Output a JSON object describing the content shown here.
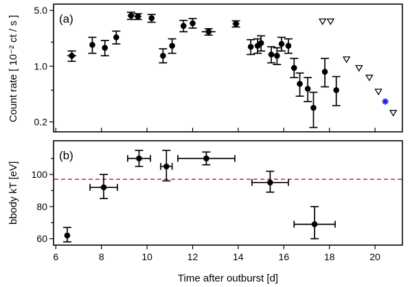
{
  "chart_data": [
    {
      "type": "scatter",
      "panel_label": "(a)",
      "ylabel": "Count rate [ 10⁻² ct / s ]",
      "xlim": [
        5.9,
        21.2
      ],
      "ylim_log": [
        0.15,
        6.0
      ],
      "y_scale": "log",
      "x_ticks": [
        6,
        8,
        10,
        12,
        14,
        16,
        18,
        20
      ],
      "y_ticks": [
        0.2,
        1.0,
        5.0
      ],
      "y_tick_labels": [
        "0.2",
        "1.0",
        "5.0"
      ],
      "series": [
        {
          "name": "detections",
          "points": [
            {
              "x": 6.7,
              "y": 1.35,
              "ylo": 1.15,
              "yhi": 1.55,
              "xerr": 0.2
            },
            {
              "x": 7.6,
              "y": 1.85,
              "ylo": 1.45,
              "yhi": 2.3,
              "xerr": 0
            },
            {
              "x": 8.15,
              "y": 1.7,
              "ylo": 1.35,
              "yhi": 2.1,
              "xerr": 0
            },
            {
              "x": 8.65,
              "y": 2.3,
              "ylo": 1.9,
              "yhi": 2.75,
              "xerr": 0
            },
            {
              "x": 9.3,
              "y": 4.3,
              "ylo": 3.85,
              "yhi": 4.75,
              "xerr": 0.15
            },
            {
              "x": 9.6,
              "y": 4.2,
              "ylo": 3.85,
              "yhi": 4.55,
              "xerr": 0.15
            },
            {
              "x": 10.2,
              "y": 4.0,
              "ylo": 3.55,
              "yhi": 4.45,
              "xerr": 0
            },
            {
              "x": 10.7,
              "y": 1.35,
              "ylo": 1.1,
              "yhi": 1.65,
              "xerr": 0
            },
            {
              "x": 11.1,
              "y": 1.8,
              "ylo": 1.45,
              "yhi": 2.2,
              "xerr": 0
            },
            {
              "x": 11.6,
              "y": 3.2,
              "ylo": 2.7,
              "yhi": 3.75,
              "xerr": 0
            },
            {
              "x": 12.0,
              "y": 3.45,
              "ylo": 3.0,
              "yhi": 3.95,
              "xerr": 0
            },
            {
              "x": 12.7,
              "y": 2.7,
              "ylo": 2.45,
              "yhi": 2.95,
              "xerr": 0.3
            },
            {
              "x": 13.9,
              "y": 3.4,
              "ylo": 3.1,
              "yhi": 3.7,
              "xerr": 0.15
            },
            {
              "x": 14.55,
              "y": 1.75,
              "ylo": 1.4,
              "yhi": 2.15,
              "xerr": 0
            },
            {
              "x": 14.85,
              "y": 1.8,
              "ylo": 1.45,
              "yhi": 2.2,
              "xerr": 0
            },
            {
              "x": 15.0,
              "y": 1.95,
              "ylo": 1.55,
              "yhi": 2.4,
              "xerr": 0
            },
            {
              "x": 15.45,
              "y": 1.4,
              "ylo": 1.1,
              "yhi": 1.75,
              "xerr": 0
            },
            {
              "x": 15.7,
              "y": 1.35,
              "ylo": 1.05,
              "yhi": 1.7,
              "xerr": 0
            },
            {
              "x": 15.9,
              "y": 1.9,
              "ylo": 1.55,
              "yhi": 2.3,
              "xerr": 0
            },
            {
              "x": 16.2,
              "y": 1.8,
              "ylo": 1.45,
              "yhi": 2.2,
              "xerr": 0
            },
            {
              "x": 16.45,
              "y": 0.95,
              "ylo": 0.72,
              "yhi": 1.25,
              "xerr": 0
            },
            {
              "x": 16.7,
              "y": 0.6,
              "ylo": 0.42,
              "yhi": 0.82,
              "xerr": 0
            },
            {
              "x": 17.05,
              "y": 0.52,
              "ylo": 0.36,
              "yhi": 0.72,
              "xerr": 0
            },
            {
              "x": 17.3,
              "y": 0.3,
              "ylo": 0.17,
              "yhi": 0.47,
              "xerr": 0
            },
            {
              "x": 17.8,
              "y": 0.85,
              "ylo": 0.55,
              "yhi": 1.25,
              "xerr": 0
            },
            {
              "x": 18.3,
              "y": 0.5,
              "ylo": 0.32,
              "yhi": 0.74,
              "xerr": 0
            }
          ]
        },
        {
          "name": "upper limits",
          "marker": "open-triangle-down",
          "points": [
            {
              "x": 17.7,
              "y": 3.65
            },
            {
              "x": 18.05,
              "y": 3.65
            },
            {
              "x": 18.75,
              "y": 1.22
            },
            {
              "x": 19.3,
              "y": 0.95
            },
            {
              "x": 19.75,
              "y": 0.72
            },
            {
              "x": 20.15,
              "y": 0.48
            },
            {
              "x": 20.8,
              "y": 0.26
            }
          ]
        },
        {
          "name": "blue marker",
          "color": "#1f1fff",
          "marker": "asterisk",
          "points": [
            {
              "x": 20.45,
              "y": 0.36
            }
          ]
        }
      ]
    },
    {
      "type": "scatter",
      "panel_label": "(b)",
      "ylabel": "bbody kT [eV]",
      "xlabel": "Time after outburst [d]",
      "xlim": [
        5.9,
        21.2
      ],
      "ylim": [
        56,
        121
      ],
      "x_ticks": [
        6,
        8,
        10,
        12,
        14,
        16,
        18,
        20
      ],
      "y_ticks": [
        60,
        80,
        100
      ],
      "reference_line": {
        "y": 97,
        "color": "#e41a1c",
        "style": "dashed"
      },
      "series": [
        {
          "name": "kT",
          "points": [
            {
              "x": 6.5,
              "y": 62,
              "xerr": 0,
              "ylo": 58,
              "yhi": 67
            },
            {
              "x": 8.1,
              "y": 92,
              "xerr": 0.6,
              "ylo": 85,
              "yhi": 100
            },
            {
              "x": 9.65,
              "y": 110,
              "xerr": 0.5,
              "ylo": 105,
              "yhi": 115
            },
            {
              "x": 10.85,
              "y": 105,
              "xerr": 0.25,
              "ylo": 96,
              "yhi": 115
            },
            {
              "x": 12.6,
              "y": 110,
              "xerr": 1.25,
              "ylo": 106,
              "yhi": 114
            },
            {
              "x": 15.4,
              "y": 95,
              "xerr": 0.8,
              "ylo": 89,
              "yhi": 102
            },
            {
              "x": 17.35,
              "y": 69,
              "xerr": 0.9,
              "ylo": 60,
              "yhi": 80
            }
          ]
        }
      ]
    }
  ]
}
